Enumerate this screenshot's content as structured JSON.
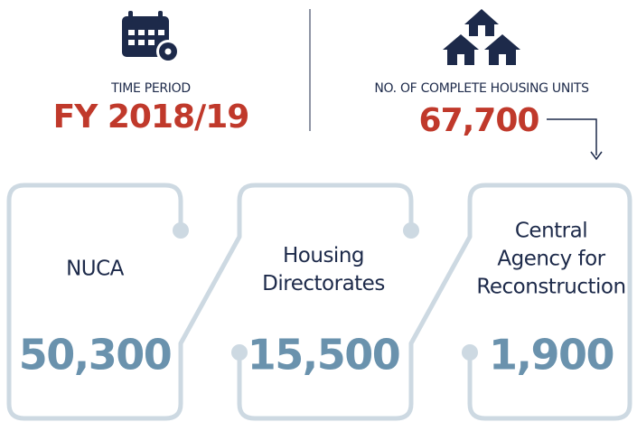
{
  "time_period": {
    "label": "TIME PERIOD",
    "value": "FY 2018/19"
  },
  "housing_units": {
    "label": "NO. OF COMPLETE HOUSING UNITS",
    "value": "67,700"
  },
  "cards": [
    {
      "name_lines": [
        "NUCA"
      ],
      "value": "50,300"
    },
    {
      "name_lines": [
        "Housing",
        "Directorates"
      ],
      "value": "15,500"
    },
    {
      "name_lines": [
        "Central",
        "Agency for",
        "Reconstruction"
      ],
      "value": "1,900"
    }
  ]
}
